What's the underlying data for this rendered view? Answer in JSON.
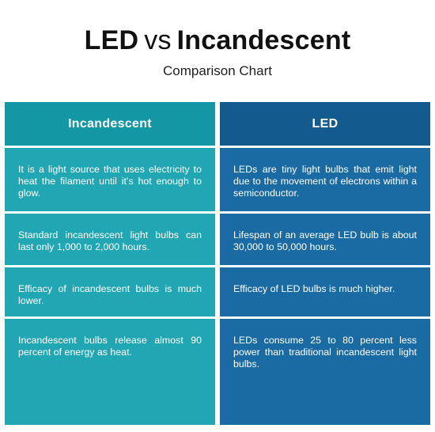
{
  "title": {
    "part1": "LED",
    "vs": "vs",
    "part2": "Incandescent"
  },
  "subtitle": "Comparison Chart",
  "columns": [
    {
      "heading": "Incandescent",
      "rows": [
        "It is a light source that uses electricity to heat the filament until it’s hot enough to glow.",
        "Standard incandescent light bulbs can last only 1,000 to 2,000 hours.",
        "Efficacy of incandescent bulbs is much lower.",
        "Incandescent bulbs release almost 90 percent of energy as heat."
      ]
    },
    {
      "heading": "LED",
      "rows": [
        "LEDs are tiny light bulbs that emit light due to the movement of electrons within a semiconductor.",
        "Lifespan of an average LED bulb is about 30,000 to 50,000 hours.",
        "Efficacy of LED bulbs is much higher.",
        "LEDs consume 25 to 80 percent less power than traditional incandescent light bulbs."
      ]
    }
  ],
  "colors": {
    "incandescent_header": "#1497a4",
    "incandescent_cell": "#21a7b3",
    "led_header": "#135a8f",
    "led_cell": "#1a6ba4"
  }
}
